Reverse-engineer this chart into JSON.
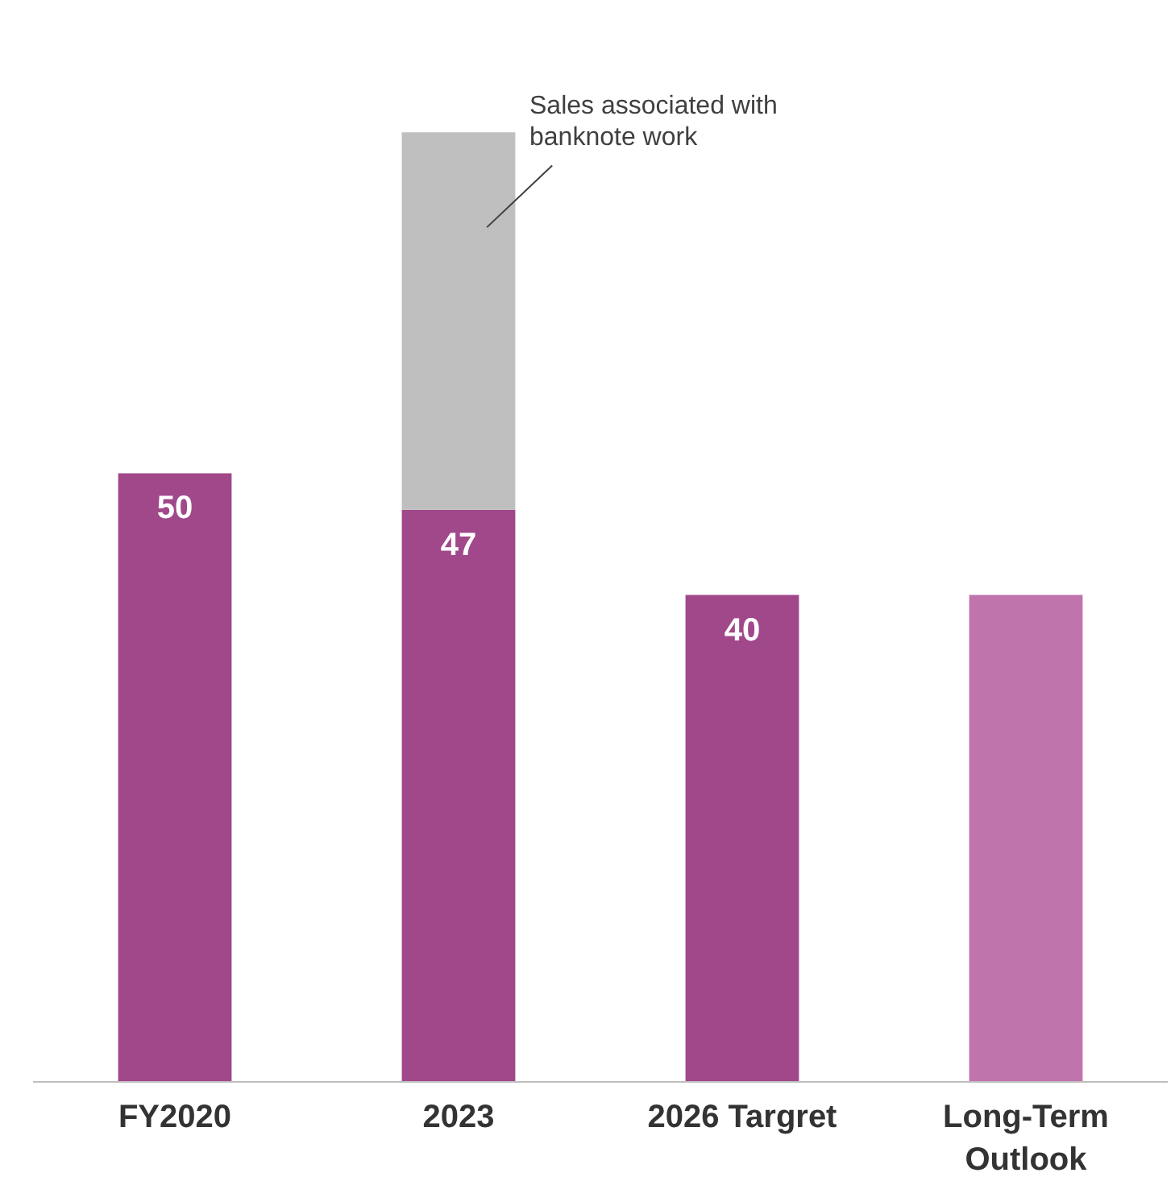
{
  "chart_data": {
    "type": "bar",
    "stacked": true,
    "categories": [
      "FY2020",
      "2023",
      "2026 Targret",
      "Long-Term Outlook"
    ],
    "series": [
      {
        "color": "#a0488a",
        "colors": [
          "#a0488a",
          "#a0488a",
          "#a0488a",
          "#c074ac"
        ],
        "values": [
          50,
          47,
          40,
          40
        ],
        "value_labels": [
          "50",
          "47",
          "40",
          null
        ]
      },
      {
        "color": "#bfbfbf",
        "values": [
          null,
          31,
          null,
          null
        ]
      }
    ],
    "grid": false,
    "tick_labels": "x",
    "annotations": [
      "Sales associated with banknote work"
    ]
  }
}
